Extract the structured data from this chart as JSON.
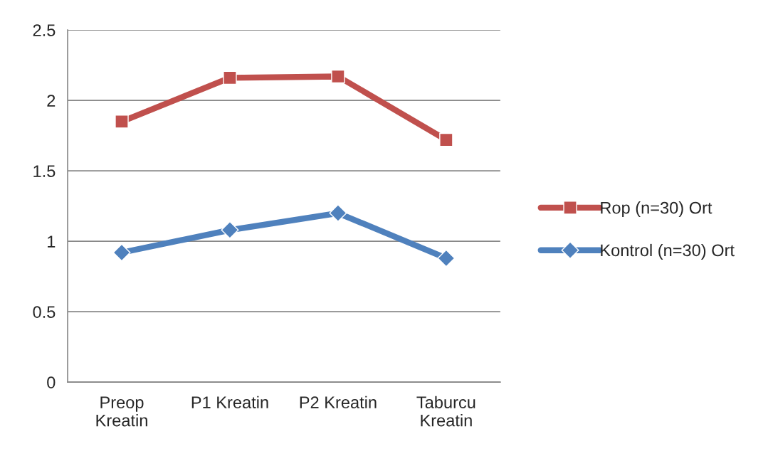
{
  "chart_data": {
    "type": "line",
    "categories": [
      "Preop\nKreatin",
      "P1 Kreatin",
      "P2 Kreatin",
      "Taburcu\nKreatin"
    ],
    "series": [
      {
        "name": "Rop (n=30) Ort",
        "color": "#c0504d",
        "marker": "square",
        "values": [
          1.85,
          2.16,
          2.17,
          1.72
        ]
      },
      {
        "name": "Kontrol (n=30) Ort",
        "color": "#4f81bd",
        "marker": "diamond",
        "values": [
          0.92,
          1.08,
          1.2,
          0.88
        ]
      }
    ],
    "ylim": [
      0,
      2.5
    ],
    "yticks": [
      0,
      0.5,
      1,
      1.5,
      2,
      2.5
    ],
    "grid": "y",
    "legend": "right"
  }
}
